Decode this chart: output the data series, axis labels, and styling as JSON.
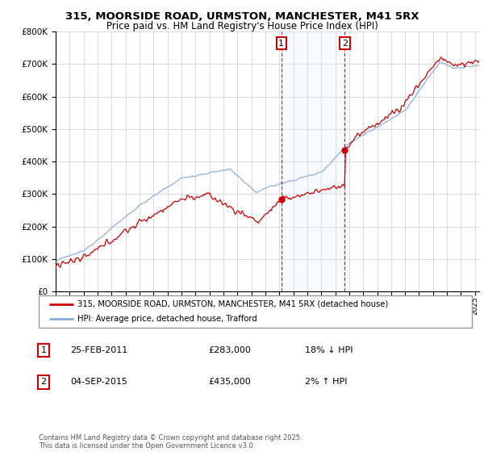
{
  "title1": "315, MOORSIDE ROAD, URMSTON, MANCHESTER, M41 5RX",
  "title2": "Price paid vs. HM Land Registry's House Price Index (HPI)",
  "legend_label1": "315, MOORSIDE ROAD, URMSTON, MANCHESTER, M41 5RX (detached house)",
  "legend_label2": "HPI: Average price, detached house, Trafford",
  "transaction1_date": "25-FEB-2011",
  "transaction1_price": "£283,000",
  "transaction1_hpi": "18% ↓ HPI",
  "transaction2_date": "04-SEP-2015",
  "transaction2_price": "£435,000",
  "transaction2_hpi": "2% ↑ HPI",
  "footer": "Contains HM Land Registry data © Crown copyright and database right 2025.\nThis data is licensed under the Open Government Licence v3.0.",
  "line_color_property": "#cc0000",
  "line_color_hpi": "#88aadd",
  "marker_color_property": "#cc0000",
  "background_color": "#ffffff",
  "grid_color": "#cccccc",
  "shade_color": "#ddeeff",
  "transaction1_x": 2011.15,
  "transaction2_x": 2015.68,
  "ylim_min": 0,
  "ylim_max": 800000,
  "xlim_min": 1995.0,
  "xlim_max": 2025.3
}
